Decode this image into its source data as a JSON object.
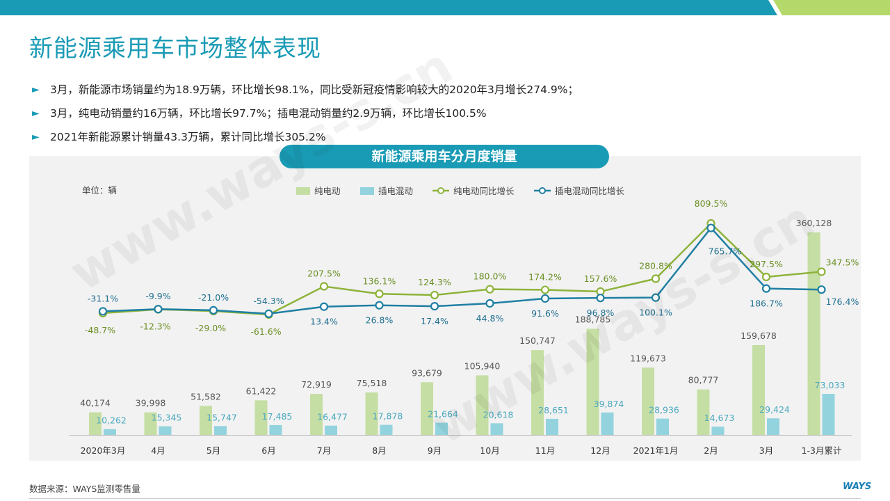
{
  "slide": {
    "title": "新能源乘用车市场整体表现",
    "bullets": [
      "3月，新能源市场销量约为18.9万辆，环比增长98.1%，同比受新冠疫情影响较大的2020年3月增长274.9%；",
      "3月，纯电动销量约16万辆，环比增长97.7%；插电混动销量约2.9万辆，环比增长100.5%",
      "2021年新能源累计销量43.3万辆，累计同比增长305.2%"
    ],
    "source": "数据来源：WAYS监测零售量",
    "logo": "WAYS",
    "watermark": "www.ways-s.cn",
    "colors": {
      "accent": "#1a9bb5",
      "bar_bev": "#c5dea3",
      "bar_phev": "#92d3de",
      "line_bev": "#8db33a",
      "line_phev": "#1f7fa3"
    }
  },
  "chart_data": {
    "type": "bar",
    "title": "新能源乘用车分月度销量",
    "unit_label": "单位：辆",
    "legend_position": "top",
    "categories": [
      "2020年3月",
      "4月",
      "5月",
      "6月",
      "7月",
      "8月",
      "9月",
      "10月",
      "11月",
      "12月",
      "2021年1月",
      "2月",
      "3月",
      "1-3月累计"
    ],
    "series": [
      {
        "name": "纯电动",
        "kind": "bar",
        "values": [
          40174,
          39998,
          51582,
          61422,
          72919,
          75518,
          93679,
          105940,
          150747,
          188785,
          119673,
          80777,
          159678,
          360128
        ],
        "labels": [
          "40,174",
          "39,998",
          "51,582",
          "61,422",
          "72,919",
          "75,518",
          "93,679",
          "105,940",
          "150,747",
          "188,785",
          "119,673",
          "80,777",
          "159,678",
          "360,128"
        ]
      },
      {
        "name": "插电混动",
        "kind": "bar",
        "values": [
          10262,
          15345,
          15747,
          17485,
          16477,
          17878,
          21664,
          20618,
          28651,
          39874,
          28936,
          14673,
          29424,
          73033
        ],
        "labels": [
          "10,262",
          "15,345",
          "15,747",
          "17,485",
          "16,477",
          "17,878",
          "21,664",
          "20,618",
          "28,651",
          "39,874",
          "28,936",
          "14,673",
          "29,424",
          "73,033"
        ]
      },
      {
        "name": "纯电动同比增长",
        "kind": "line",
        "values": [
          -48.7,
          -12.3,
          -29.0,
          -61.6,
          207.5,
          136.1,
          124.3,
          180.0,
          174.2,
          157.6,
          280.8,
          809.5,
          297.5,
          347.5
        ],
        "labels": [
          "-48.7%",
          "-12.3%",
          "-29.0%",
          "-61.6%",
          "207.5%",
          "136.1%",
          "124.3%",
          "180.0%",
          "174.2%",
          "157.6%",
          "280.8%",
          "809.5%",
          "297.5%",
          "347.5%"
        ]
      },
      {
        "name": "插电混动同比增长",
        "kind": "line",
        "values": [
          -31.1,
          -9.9,
          -21.0,
          -54.3,
          13.4,
          26.8,
          17.4,
          44.8,
          91.6,
          96.8,
          100.1,
          765.7,
          186.7,
          176.4
        ],
        "labels": [
          "-31.1%",
          "-9.9%",
          "-21.0%",
          "-54.3%",
          "13.4%",
          "26.8%",
          "17.4%",
          "44.8%",
          "91.6%",
          "96.8%",
          "100.1%",
          "765.7%",
          "186.7%",
          "176.4%"
        ]
      }
    ]
  }
}
